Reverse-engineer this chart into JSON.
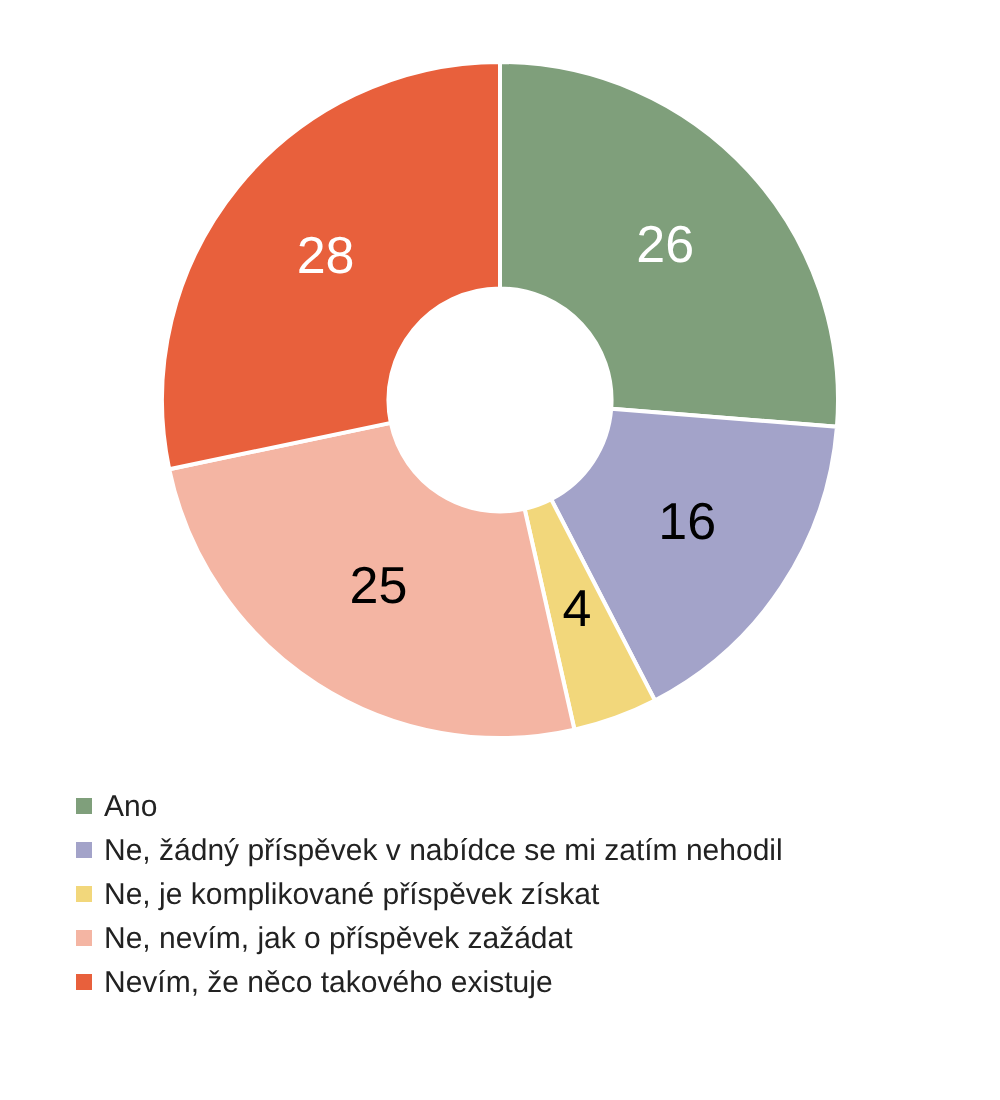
{
  "chart_data": {
    "type": "donut",
    "categories": [
      "Ano",
      "Ne, žádný příspěvek v nabídce se mi zatím nehodil",
      "Ne, je komplikované příspěvek získat",
      "Ne, nevím, jak o příspěvek zažádat",
      "Nevím, že něco takového existuje"
    ],
    "values": [
      26,
      16,
      4,
      25,
      28
    ],
    "colors": [
      "#7f9f7b",
      "#a3a3c9",
      "#f2d77b",
      "#f4b5a3",
      "#e8603c"
    ],
    "data_labels": true,
    "legend": "bottom"
  }
}
